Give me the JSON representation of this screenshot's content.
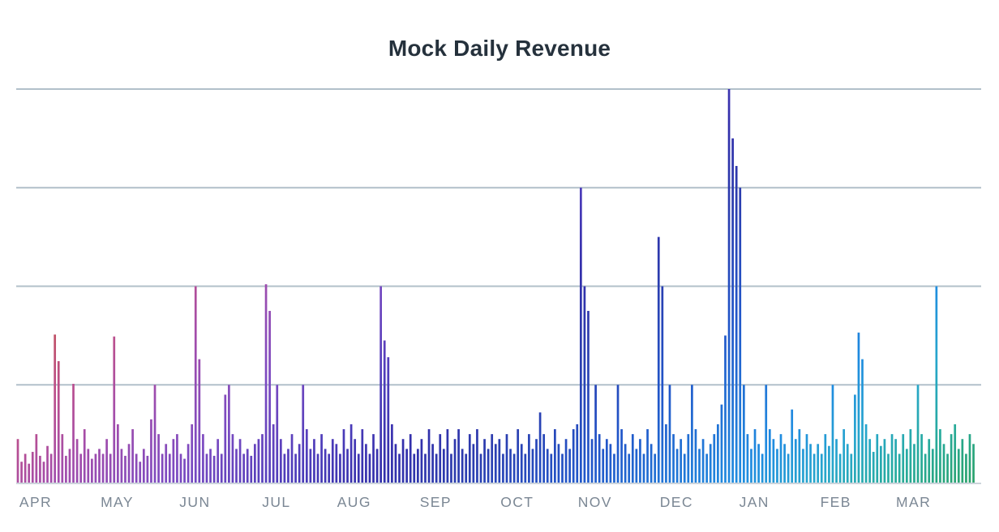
{
  "chart_data": {
    "type": "bar",
    "title": "Mock Daily Revenue",
    "xlabel": "",
    "ylabel": "",
    "ylim": [
      0,
      4.05
    ],
    "grid": "horizontal",
    "legend": "none",
    "y_axis": {
      "tick_labels_visible": false,
      "gridline_values": [
        1,
        2,
        3,
        4
      ]
    },
    "colors": {
      "background": "#ffffff",
      "title": "#25313c",
      "month_label": "#7b8794",
      "gridline": "#b2c0ca",
      "axis_line": "#ccd4db",
      "bar_gradient_stops": [
        {
          "offset": 0.0,
          "color": "#c25058"
        },
        {
          "offset": 0.08,
          "color": "#bb4f8d"
        },
        {
          "offset": 0.15,
          "color": "#a44daa"
        },
        {
          "offset": 0.26,
          "color": "#7b4ac1"
        },
        {
          "offset": 0.37,
          "color": "#4c3cba"
        },
        {
          "offset": 0.445,
          "color": "#332fab"
        },
        {
          "offset": 0.52,
          "color": "#2b3cae"
        },
        {
          "offset": 0.63,
          "color": "#2156c9"
        },
        {
          "offset": 0.78,
          "color": "#1f8ce0"
        },
        {
          "offset": 0.85,
          "color": "#27a6cd"
        },
        {
          "offset": 0.92,
          "color": "#27ab9e"
        },
        {
          "offset": 1.0,
          "color": "#2aa168"
        }
      ]
    },
    "months": [
      {
        "label": "APR",
        "values": [
          0.45,
          0.22,
          0.3,
          0.2,
          0.32,
          0.5,
          0.28,
          0.22,
          0.38,
          0.3,
          1.51,
          1.24,
          0.5,
          0.28,
          0.35,
          1.01,
          0.45,
          0.3,
          0.55,
          0.35,
          0.25,
          0.3
        ]
      },
      {
        "label": "MAY",
        "values": [
          0.35,
          0.3,
          0.45,
          0.3,
          1.49,
          0.6,
          0.35,
          0.28,
          0.4,
          0.55,
          0.3,
          0.22,
          0.35,
          0.28,
          0.65,
          1.0,
          0.5,
          0.3,
          0.4,
          0.3,
          0.45
        ]
      },
      {
        "label": "JUN",
        "values": [
          0.5,
          0.3,
          0.25,
          0.4,
          0.6,
          2.0,
          1.26,
          0.5,
          0.3,
          0.35,
          0.28,
          0.45,
          0.3,
          0.9,
          1.0,
          0.5,
          0.35,
          0.45,
          0.3,
          0.35,
          0.28,
          0.4
        ]
      },
      {
        "label": "JUL",
        "values": [
          0.45,
          0.5,
          2.02,
          1.75,
          0.6,
          1.0,
          0.45,
          0.3,
          0.35,
          0.5,
          0.3,
          0.4,
          1.0,
          0.55,
          0.35,
          0.45,
          0.3,
          0.5,
          0.35,
          0.3,
          0.45
        ]
      },
      {
        "label": "AUG",
        "values": [
          0.4,
          0.3,
          0.55,
          0.35,
          0.6,
          0.45,
          0.3,
          0.55,
          0.4,
          0.3,
          0.5,
          0.35,
          2.0,
          1.45,
          1.28,
          0.6,
          0.4,
          0.3,
          0.45,
          0.35,
          0.5,
          0.3
        ]
      },
      {
        "label": "SEP",
        "values": [
          0.35,
          0.45,
          0.3,
          0.55,
          0.4,
          0.3,
          0.5,
          0.35,
          0.55,
          0.3,
          0.45,
          0.55,
          0.35,
          0.3,
          0.5,
          0.4,
          0.55,
          0.3,
          0.45,
          0.35,
          0.5,
          0.4
        ]
      },
      {
        "label": "OCT",
        "values": [
          0.45,
          0.3,
          0.5,
          0.35,
          0.3,
          0.55,
          0.4,
          0.3,
          0.5,
          0.35,
          0.45,
          0.72,
          0.5,
          0.35,
          0.3,
          0.55,
          0.4,
          0.3,
          0.45,
          0.35,
          0.55
        ]
      },
      {
        "label": "NOV",
        "values": [
          0.6,
          3.0,
          2.0,
          1.75,
          0.45,
          1.0,
          0.5,
          0.35,
          0.45,
          0.4,
          0.3,
          1.0,
          0.55,
          0.4,
          0.3,
          0.5,
          0.35,
          0.45,
          0.3,
          0.55,
          0.4,
          0.3
        ]
      },
      {
        "label": "DEC",
        "values": [
          2.5,
          2.0,
          0.6,
          1.0,
          0.5,
          0.35,
          0.45,
          0.3,
          0.5,
          1.0,
          0.55,
          0.35,
          0.45,
          0.3,
          0.4,
          0.5,
          0.6,
          0.8,
          1.5,
          4.0,
          3.5
        ]
      },
      {
        "label": "JAN",
        "values": [
          3.22,
          3.0,
          1.0,
          0.5,
          0.35,
          0.55,
          0.4,
          0.3,
          1.0,
          0.55,
          0.45,
          0.35,
          0.5,
          0.4,
          0.3,
          0.75,
          0.45,
          0.55,
          0.35,
          0.5,
          0.4,
          0.3
        ]
      },
      {
        "label": "FEB",
        "values": [
          0.4,
          0.3,
          0.5,
          0.38,
          1.0,
          0.45,
          0.3,
          0.55,
          0.4,
          0.3,
          0.9,
          1.53,
          1.26,
          0.6,
          0.45,
          0.32,
          0.5,
          0.38,
          0.45,
          0.3,
          0.5
        ]
      },
      {
        "label": "MAR",
        "values": [
          0.45,
          0.3,
          0.5,
          0.35,
          0.55,
          0.4,
          1.0,
          0.5,
          0.3,
          0.45,
          0.35,
          2.0,
          0.55,
          0.4,
          0.3,
          0.5,
          0.6,
          0.35,
          0.45,
          0.3,
          0.5,
          0.4
        ]
      }
    ]
  }
}
